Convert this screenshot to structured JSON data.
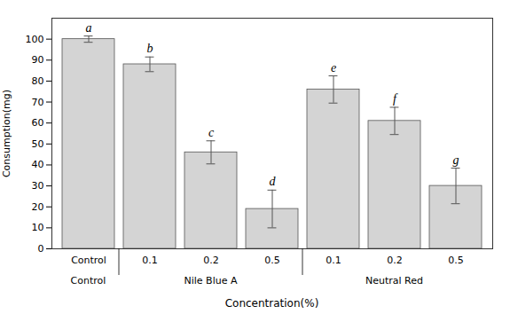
{
  "chart_data": {
    "type": "bar",
    "categories": [
      "Control",
      "0.1",
      "0.2",
      "0.5",
      "0.1",
      "0.2",
      "0.5"
    ],
    "groups": [
      "Control",
      "Nile Blue A",
      "Nile Blue A",
      "Nile Blue A",
      "Neutral Red",
      "Neutral Red",
      "Neutral Red"
    ],
    "values": [
      100,
      88,
      46,
      19,
      76,
      61,
      30
    ],
    "errors": [
      1.5,
      3.5,
      5.5,
      9.0,
      6.5,
      6.5,
      8.5
    ],
    "sig_labels": [
      "a",
      "b",
      "c",
      "d",
      "e",
      "f",
      "g"
    ],
    "color": "#d4d4d4",
    "xlabel": "Concentration(%)",
    "ylabel": "Consumption(mg)",
    "ylim": [
      0,
      110
    ],
    "yticks": [
      0,
      10,
      20,
      30,
      40,
      50,
      60,
      70,
      80,
      90,
      100
    ]
  }
}
